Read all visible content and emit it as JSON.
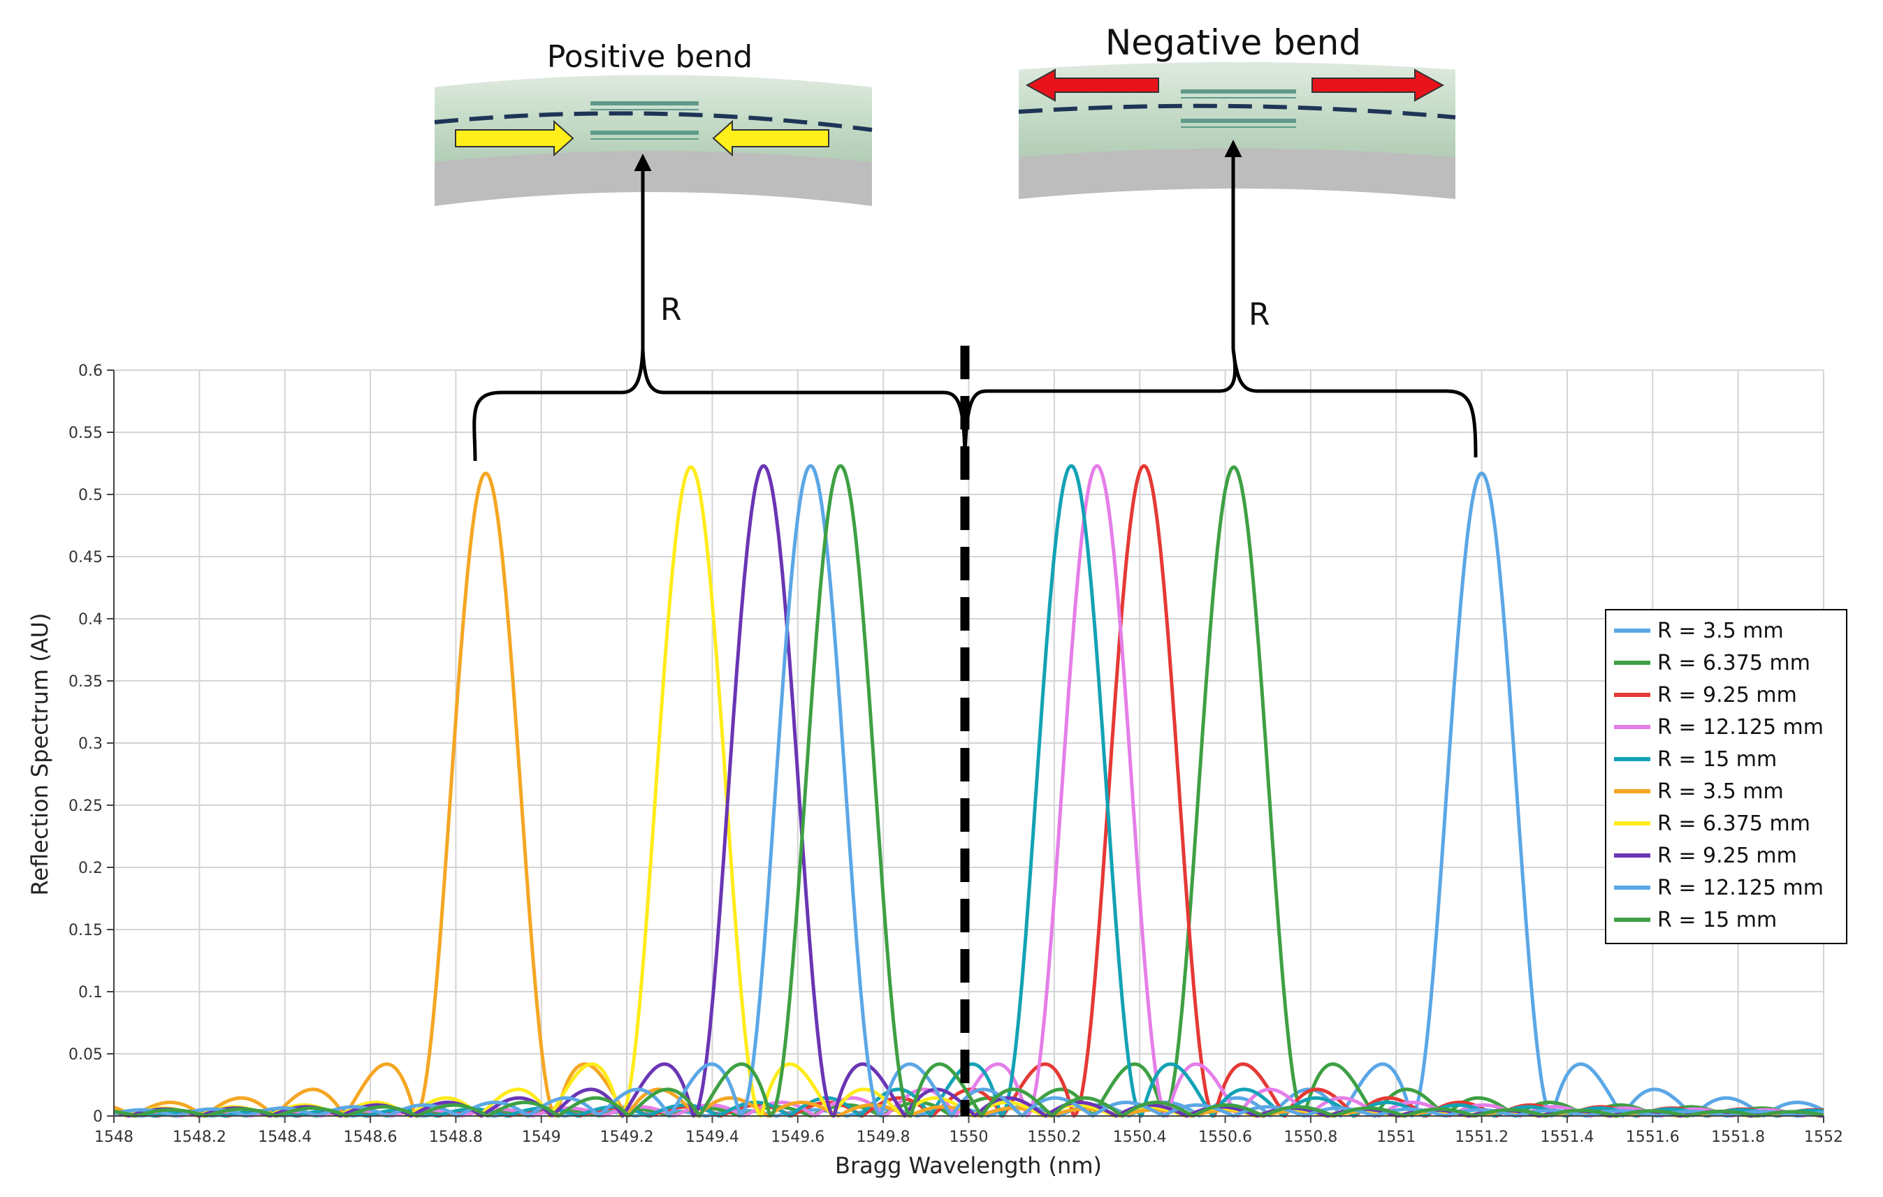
{
  "chart_data": {
    "type": "line",
    "title": "",
    "xlabel": "Bragg Wavelength (nm)",
    "ylabel": "Reflection Spectrum (AU)",
    "xlim": [
      1548,
      1552
    ],
    "ylim": [
      0,
      0.6
    ],
    "xticks": [
      "1548",
      "1548.2",
      "1548.4",
      "1548.6",
      "1548.8",
      "1549",
      "1549.2",
      "1549.4",
      "1549.6",
      "1549.8",
      "1550",
      "1550.2",
      "1550.4",
      "1550.6",
      "1550.8",
      "1551",
      "1551.2",
      "1551.4",
      "1551.6",
      "1551.8",
      "1552"
    ],
    "yticks": [
      "0",
      "0.05",
      "0.1",
      "0.15",
      "0.2",
      "0.25",
      "0.3",
      "0.35",
      "0.4",
      "0.45",
      "0.5",
      "0.55",
      "0.6"
    ],
    "grid": true,
    "legend_position": "right",
    "reference_wavelength": 1550.0,
    "series": [
      {
        "name": "R = 3.5 mm",
        "color": "#5ba7e6",
        "peak_x": 1551.2,
        "peak_y": 0.517
      },
      {
        "name": "R = 6.375 mm",
        "color": "#3ea043",
        "peak_x": 1550.62,
        "peak_y": 0.522
      },
      {
        "name": "R = 9.25 mm",
        "color": "#e53935",
        "peak_x": 1550.41,
        "peak_y": 0.523
      },
      {
        "name": "R = 12.125 mm",
        "color": "#e57ee8",
        "peak_x": 1550.3,
        "peak_y": 0.523
      },
      {
        "name": "R = 15 mm",
        "color": "#13a2b5",
        "peak_x": 1550.24,
        "peak_y": 0.523
      },
      {
        "name": "R = 3.5 mm",
        "color": "#f5a623",
        "peak_x": 1548.87,
        "peak_y": 0.517
      },
      {
        "name": "R = 6.375 mm",
        "color": "#ffeb1a",
        "peak_x": 1549.35,
        "peak_y": 0.522
      },
      {
        "name": "R = 9.25 mm",
        "color": "#6a35b5",
        "peak_x": 1549.52,
        "peak_y": 0.523
      },
      {
        "name": "R = 12.125 mm",
        "color": "#5ba7e6",
        "peak_x": 1549.63,
        "peak_y": 0.523
      },
      {
        "name": "R = 15 mm",
        "color": "#3ea043",
        "peak_x": 1549.7,
        "peak_y": 0.523
      }
    ],
    "annotations": {
      "positive_bend": "Positive bend",
      "negative_bend": "Negative bend",
      "r_left": "R",
      "r_right": "R"
    }
  }
}
